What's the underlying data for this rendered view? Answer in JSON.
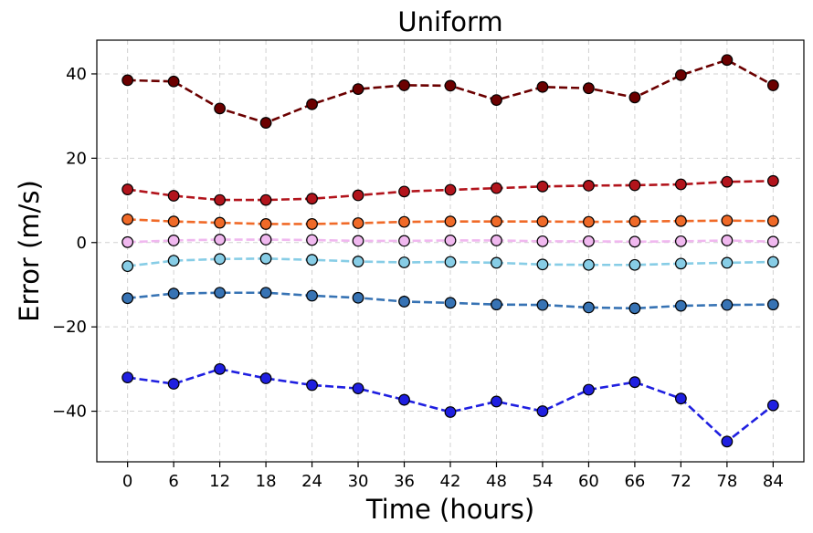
{
  "chart_data": {
    "type": "line",
    "title": "Uniform",
    "xlabel": "Time (hours)",
    "ylabel": "Error (m/s)",
    "x": [
      0,
      6,
      12,
      18,
      24,
      30,
      36,
      42,
      48,
      54,
      60,
      66,
      72,
      78,
      84
    ],
    "xticks": [
      "0",
      "6",
      "12",
      "18",
      "24",
      "30",
      "36",
      "42",
      "48",
      "54",
      "60",
      "66",
      "72",
      "78",
      "84"
    ],
    "xlim": [
      -4,
      88
    ],
    "ylim": [
      -52,
      48
    ],
    "yticks": [
      -40,
      -20,
      0,
      20,
      40
    ],
    "ytick_labels": [
      "−40",
      "−20",
      "0",
      "20",
      "40"
    ],
    "grid": true,
    "series": [
      {
        "color": "#6b0000",
        "values": [
          38.5,
          38.2,
          31.8,
          28.4,
          32.8,
          36.4,
          37.3,
          37.2,
          33.8,
          36.9,
          36.6,
          34.4,
          39.7,
          43.3,
          37.3
        ]
      },
      {
        "color": "#b2141c",
        "values": [
          12.6,
          11.1,
          10.1,
          10.1,
          10.4,
          11.2,
          12.1,
          12.5,
          12.9,
          13.3,
          13.5,
          13.6,
          13.8,
          14.4,
          14.6
        ]
      },
      {
        "color": "#f06a28",
        "values": [
          5.5,
          5.0,
          4.7,
          4.4,
          4.4,
          4.6,
          4.9,
          5.0,
          5.0,
          5.0,
          4.9,
          5.0,
          5.1,
          5.2,
          5.1
        ]
      },
      {
        "color": "#f0b8ef",
        "values": [
          0.1,
          0.5,
          0.7,
          0.7,
          0.6,
          0.4,
          0.4,
          0.5,
          0.5,
          0.3,
          0.3,
          0.2,
          0.3,
          0.5,
          0.2
        ]
      },
      {
        "color": "#87cde6",
        "values": [
          -5.6,
          -4.3,
          -3.9,
          -3.8,
          -4.1,
          -4.5,
          -4.7,
          -4.6,
          -4.8,
          -5.2,
          -5.3,
          -5.3,
          -5.0,
          -4.8,
          -4.6
        ]
      },
      {
        "color": "#3773b4",
        "values": [
          -13.2,
          -12.1,
          -11.9,
          -11.9,
          -12.6,
          -13.1,
          -14.0,
          -14.3,
          -14.7,
          -14.8,
          -15.4,
          -15.6,
          -15.0,
          -14.8,
          -14.7
        ]
      },
      {
        "color": "#1f1fe0",
        "values": [
          -32.0,
          -33.5,
          -30.0,
          -32.2,
          -33.8,
          -34.6,
          -37.3,
          -40.2,
          -37.7,
          -40.0,
          -34.9,
          -33.1,
          -37.0,
          -47.2,
          -38.6
        ]
      }
    ]
  }
}
